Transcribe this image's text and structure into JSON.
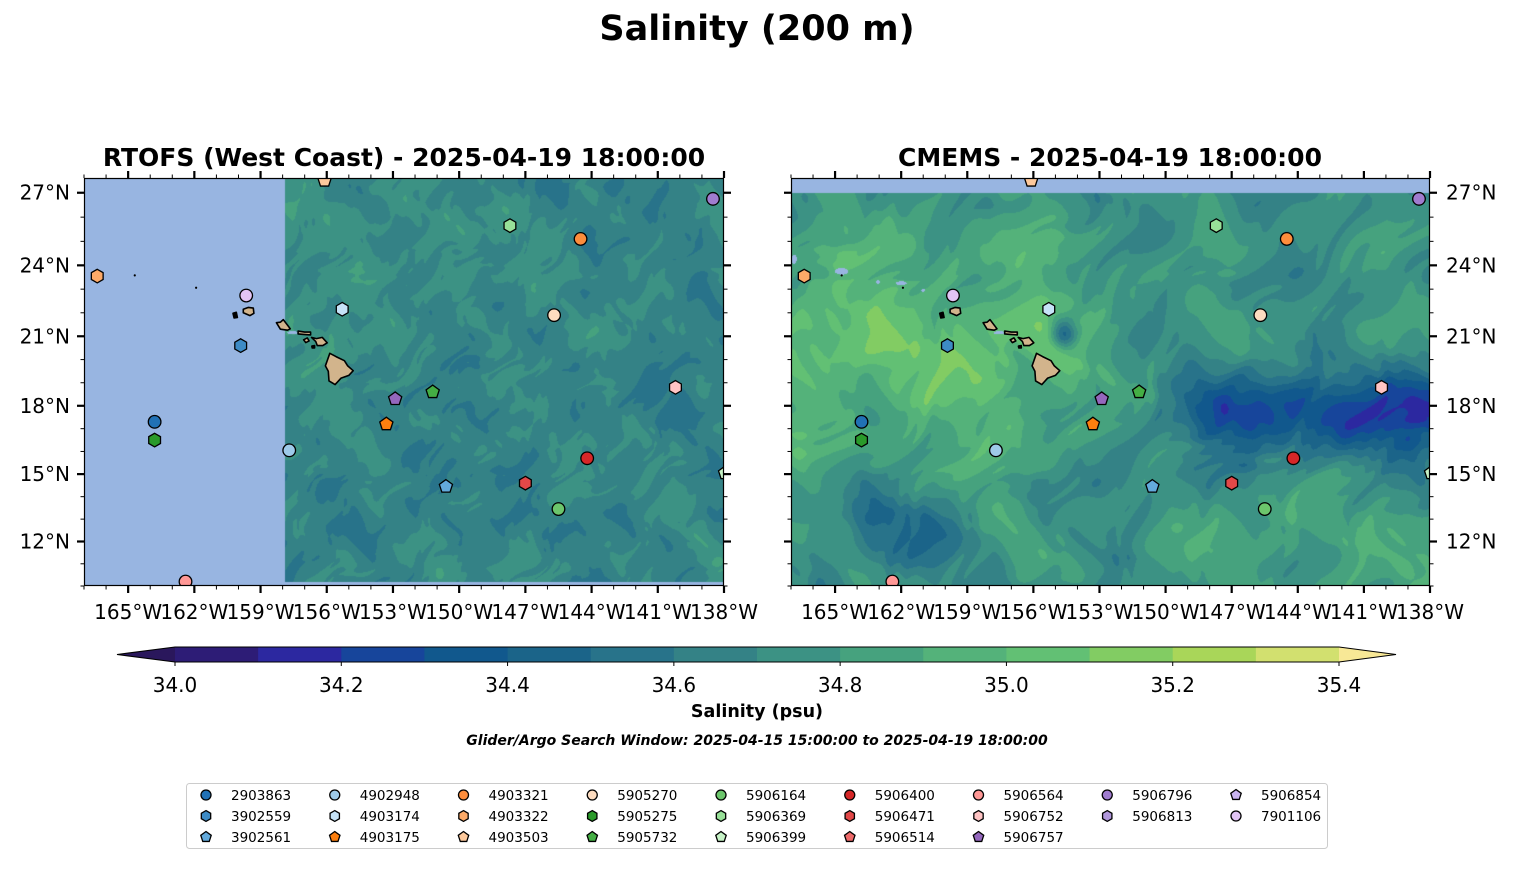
{
  "chart_data": {
    "type": "heatmap",
    "title": "Salinity (200 m)",
    "subtitle": "Glider/Argo Search Window: 2025-04-15 15:00:00 to 2025-04-19 18:00:00",
    "projection": "mercator",
    "grid": false,
    "lon_range": [
      -167,
      -138
    ],
    "lat_range": [
      10.0,
      27.6
    ],
    "panels": [
      {
        "title": "RTOFS (West Coast) - 2025-04-19 18:00:00",
        "source": "RTOFS (West Coast)",
        "valid_time": "2025-04-19 18:00:00",
        "ytick_side": "left",
        "mask": {
          "lon_max": -157.9,
          "lat_min": 10.2
        }
      },
      {
        "title": "CMEMS - 2025-04-19 18:00:00",
        "source": "CMEMS",
        "valid_time": "2025-04-19 18:00:00",
        "ytick_side": "right",
        "mask": {
          "lat_max": 27.0
        }
      }
    ],
    "xticks": {
      "values": [
        -165,
        -162,
        -159,
        -156,
        -153,
        -150,
        -147,
        -144,
        -141,
        -138
      ],
      "labels": [
        "165°W",
        "162°W",
        "159°W",
        "156°W",
        "153°W",
        "150°W",
        "147°W",
        "144°W",
        "141°W",
        "138°W"
      ]
    },
    "yticks": {
      "values": [
        12,
        15,
        18,
        21,
        24,
        27
      ],
      "labels": [
        "12°N",
        "15°N",
        "18°N",
        "21°N",
        "24°N",
        "27°N"
      ]
    },
    "colorbar": {
      "label": "Salinity (psu)",
      "vmin": 34.0,
      "vmax": 35.4,
      "step": 0.1,
      "extend": "both",
      "ticks": [
        34.0,
        34.2,
        34.4,
        34.6,
        34.8,
        35.0,
        35.2,
        35.4
      ],
      "tick_labels": [
        "34.0",
        "34.2",
        "34.4",
        "34.6",
        "34.8",
        "35.0",
        "35.2",
        "35.4"
      ],
      "colors": [
        "#2d1c76",
        "#2c28a0",
        "#17459b",
        "#11588d",
        "#1b6489",
        "#28738a",
        "#348286",
        "#3c9284",
        "#46a27e",
        "#54b27a",
        "#62c074",
        "#82cc63",
        "#a9d659",
        "#d2e06f"
      ],
      "under_color": "#2a175c",
      "over_color": "#f8e896"
    },
    "colors": {
      "land": "#d2b48c",
      "no_data": "#98b5e1",
      "marker_edge": "#000000",
      "legend_border": "#cccccc"
    },
    "legend": {
      "placement": "bottom-center",
      "ncol": 9
    },
    "markers": [
      {
        "id": "2903863",
        "shape": "circle",
        "color": "#2171b5",
        "lon": -163.8,
        "lat": 17.3
      },
      {
        "id": "3902559",
        "shape": "hexagon",
        "color": "#3d8bc5",
        "lon": -159.9,
        "lat": 20.6
      },
      {
        "id": "3902561",
        "shape": "pentagon",
        "color": "#63aadc",
        "lon": -150.6,
        "lat": 14.45
      },
      {
        "id": "4902948",
        "shape": "circle",
        "color": "#9ecae9",
        "lon": -157.7,
        "lat": 16.05
      },
      {
        "id": "4903174",
        "shape": "hexagon",
        "color": "#c6e3f7",
        "lon": -155.3,
        "lat": 22.15
      },
      {
        "id": "4903175",
        "shape": "pentagon",
        "color": "#fd7f0f",
        "lon": -153.3,
        "lat": 17.2
      },
      {
        "id": "4903321",
        "shape": "circle",
        "color": "#fd8d3c",
        "lon": -144.5,
        "lat": 25.1
      },
      {
        "id": "4903322",
        "shape": "hexagon",
        "color": "#fdaa68",
        "lon": -166.4,
        "lat": 23.55
      },
      {
        "id": "4903503",
        "shape": "pentagon",
        "color": "#fdc99c",
        "lon": -156.1,
        "lat": 27.5
      },
      {
        "id": "5905270",
        "shape": "circle",
        "color": "#fddcc0",
        "lon": -145.7,
        "lat": 21.9
      },
      {
        "id": "5905275",
        "shape": "hexagon",
        "color": "#2a9a2a",
        "lon": -163.8,
        "lat": 16.5
      },
      {
        "id": "5905732",
        "shape": "pentagon",
        "color": "#44ae44",
        "lon": -151.2,
        "lat": 18.6
      },
      {
        "id": "5906164",
        "shape": "circle",
        "color": "#6cc66c",
        "lon": -145.5,
        "lat": 13.45
      },
      {
        "id": "5906369",
        "shape": "hexagon",
        "color": "#98e098",
        "lon": -147.7,
        "lat": 25.65
      },
      {
        "id": "5906399",
        "shape": "pentagon",
        "color": "#c6f2c6",
        "lon": -137.95,
        "lat": 15.05
      },
      {
        "id": "5906400",
        "shape": "circle",
        "color": "#d62728",
        "lon": -144.2,
        "lat": 15.7
      },
      {
        "id": "5906471",
        "shape": "hexagon",
        "color": "#e24848",
        "lon": -147.0,
        "lat": 14.6
      },
      {
        "id": "5906514",
        "shape": "pentagon",
        "color": "#ee6a6a",
        "lon": null,
        "lat": null
      },
      {
        "id": "5906564",
        "shape": "circle",
        "color": "#ff9896",
        "lon": -162.4,
        "lat": 10.2
      },
      {
        "id": "5906752",
        "shape": "hexagon",
        "color": "#ffc4c4",
        "lon": -140.2,
        "lat": 18.8
      },
      {
        "id": "5906757",
        "shape": "pentagon",
        "color": "#9467bd",
        "lon": -152.9,
        "lat": 18.3
      },
      {
        "id": "5906796",
        "shape": "circle",
        "color": "#a07ccf",
        "lon": -138.5,
        "lat": 26.75
      },
      {
        "id": "5906813",
        "shape": "hexagon",
        "color": "#b197dc",
        "lon": null,
        "lat": null
      },
      {
        "id": "5906854",
        "shape": "pentagon",
        "color": "#c9b3ee",
        "lon": null,
        "lat": null
      },
      {
        "id": "7901106",
        "shape": "circle",
        "color": "#e2c4f5",
        "lon": -159.65,
        "lat": 22.73
      }
    ]
  }
}
